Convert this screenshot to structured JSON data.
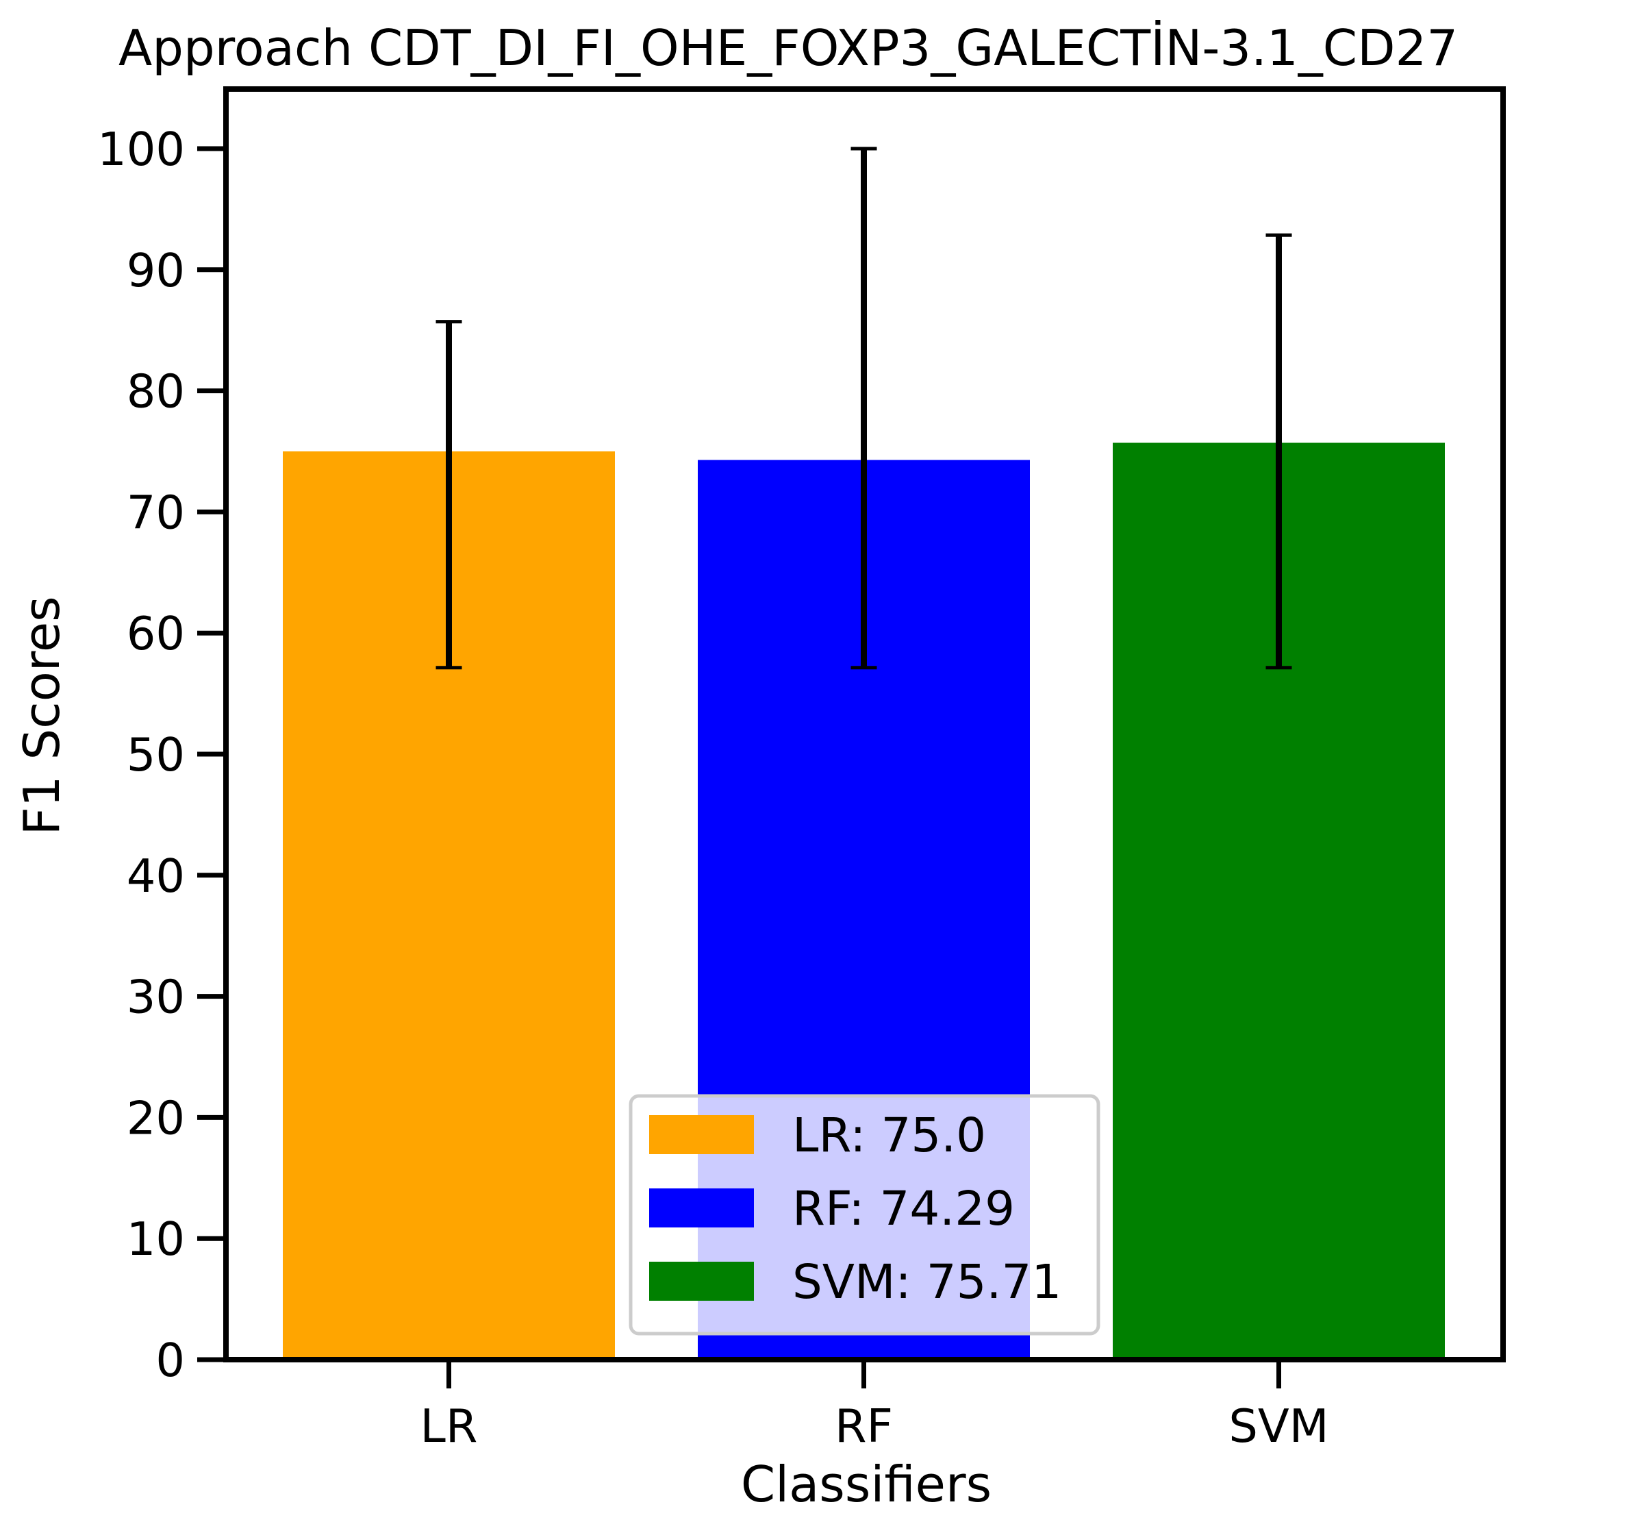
{
  "chart_data": {
    "type": "bar",
    "title": "Approach CDT_DI_FI_OHE_FOXP3_GALECTİN-3.1_CD27",
    "xlabel": "Classifiers",
    "ylabel": "F1 Scores",
    "categories": [
      "LR",
      "RF",
      "SVM"
    ],
    "values": [
      75.0,
      74.29,
      75.71
    ],
    "error_low": [
      57.14,
      57.14,
      57.14
    ],
    "error_high": [
      85.71,
      100.0,
      92.86
    ],
    "colors": [
      "#ffa500",
      "#0000ff",
      "#008000"
    ],
    "ylim": [
      0,
      105
    ],
    "yticks": [
      "0",
      "10",
      "20",
      "30",
      "40",
      "50",
      "60",
      "70",
      "80",
      "90",
      "100"
    ],
    "grid": false,
    "legend": {
      "placement": "lower-center",
      "entries": [
        "LR: 75.0",
        "RF: 74.29",
        "SVM: 75.71"
      ]
    }
  }
}
